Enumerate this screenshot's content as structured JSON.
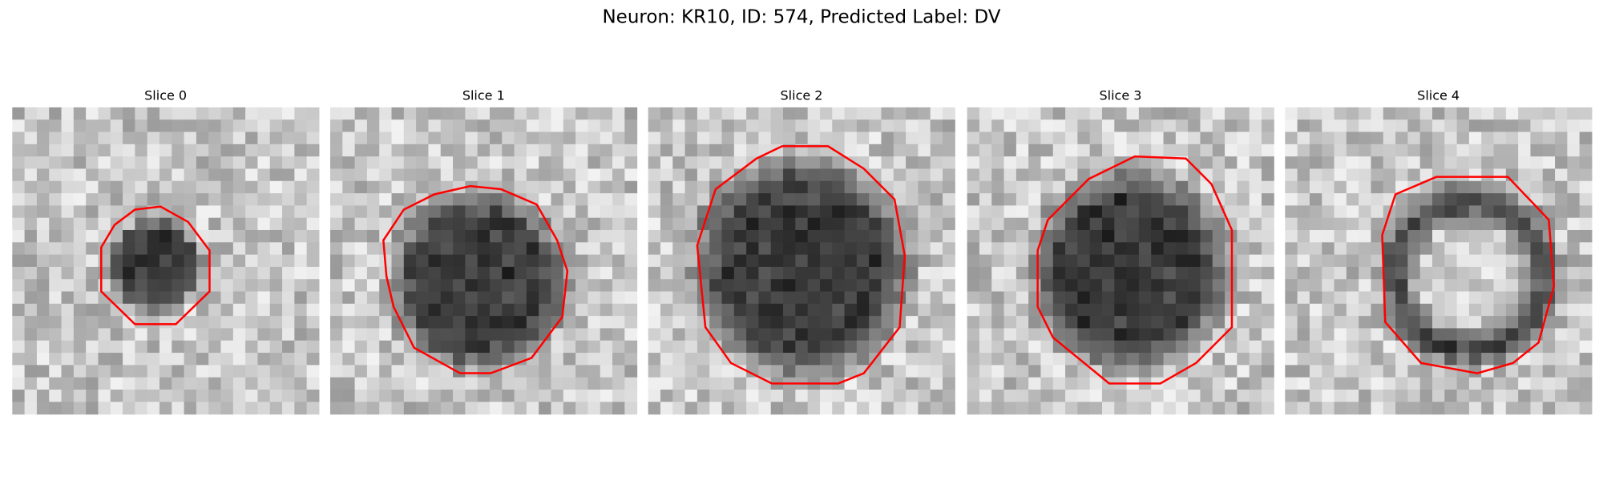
{
  "figure": {
    "title": "Neuron: KR10, ID: 574, Predicted Label: DV",
    "panels": [
      {
        "title": "Slice 0"
      },
      {
        "title": "Slice 1"
      },
      {
        "title": "Slice 2"
      },
      {
        "title": "Slice 3"
      },
      {
        "title": "Slice 4"
      }
    ]
  }
}
